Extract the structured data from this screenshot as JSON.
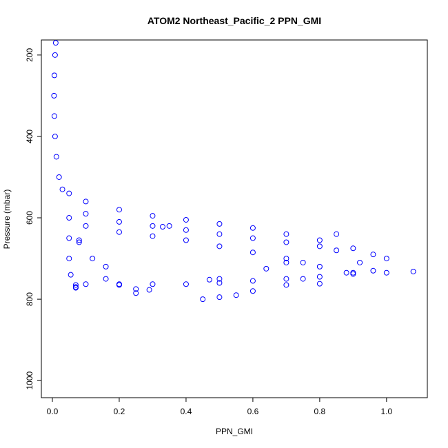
{
  "chart_data": {
    "type": "scatter",
    "title": "ATOM2 Northeast_Pacific_2 PPN_GMI",
    "x_label": "PPN_GMI",
    "y_label": "Pressure (mbar)",
    "xlim": [
      -0.033,
      1.122
    ],
    "ylim": [
      1042,
      163
    ],
    "y_reversed": true,
    "xticks": [
      {
        "value": 0,
        "label": "0.0"
      },
      0.2,
      0.4,
      0.6,
      0.8,
      {
        "value": 1,
        "label": "1.0"
      }
    ],
    "yticks": [
      200,
      400,
      600,
      800,
      1000
    ],
    "series": [
      {
        "color": "#0000ff",
        "x": [
          0.01,
          0.008,
          0.006,
          0.005,
          0.006,
          0.008,
          0.012,
          0.02,
          0.03,
          0.05,
          0.1,
          0.2,
          0.3,
          0.4,
          0.5,
          0.6,
          0.7,
          0.8,
          0.9,
          1.0,
          1.08,
          1.0,
          0.9,
          0.8,
          0.7,
          0.6,
          0.5,
          0.4,
          0.3,
          0.2,
          0.1,
          0.07,
          0.07,
          0.05,
          0.05,
          0.05,
          0.055,
          0.08,
          0.12,
          0.16,
          0.16,
          0.2,
          0.25,
          0.29,
          0.25,
          0.45,
          0.5,
          0.55,
          0.6,
          0.7,
          0.75,
          0.8,
          0.1,
          0.2,
          0.3,
          0.4,
          0.5,
          0.6,
          0.7,
          0.8,
          0.85,
          0.1,
          0.2,
          0.3,
          0.4,
          0.5,
          0.6,
          0.7,
          0.75,
          0.35,
          0.33,
          0.92,
          0.9,
          0.96,
          0.96,
          0.5,
          0.47,
          0.08,
          0.07,
          0.8,
          0.7,
          0.64,
          0.85,
          0.88
        ],
        "y": [
          170,
          200,
          250,
          300,
          350,
          400,
          450,
          500,
          530,
          540,
          560,
          580,
          595,
          605,
          615,
          625,
          640,
          655,
          675,
          700,
          732,
          735,
          738,
          745,
          750,
          755,
          760,
          763,
          763,
          763,
          763,
          765,
          772,
          600,
          650,
          700,
          740,
          660,
          700,
          720,
          750,
          765,
          775,
          777,
          785,
          800,
          795,
          790,
          780,
          765,
          750,
          720,
          590,
          610,
          620,
          630,
          640,
          650,
          660,
          670,
          680,
          620,
          635,
          645,
          655,
          670,
          685,
          700,
          710,
          620,
          622,
          710,
          735,
          690,
          730,
          750,
          752,
          655,
          770,
          762,
          710,
          725,
          640,
          735
        ]
      }
    ]
  }
}
